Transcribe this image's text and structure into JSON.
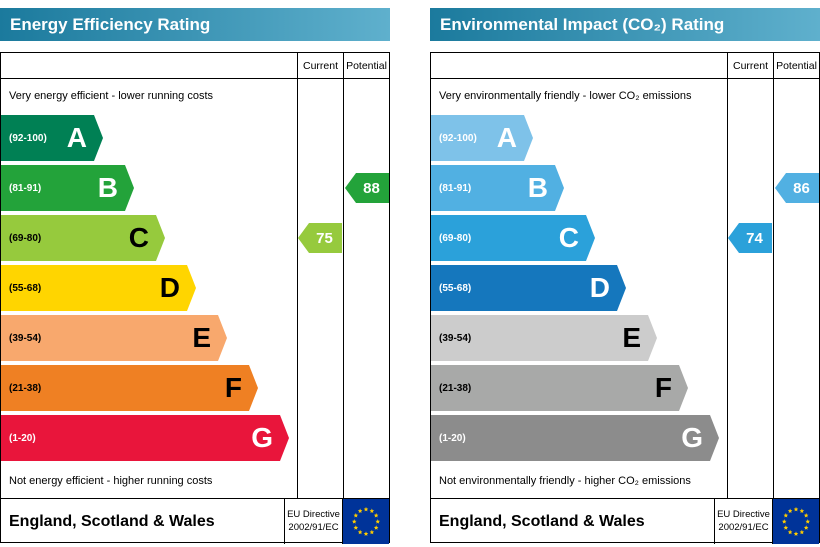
{
  "eu_flag": {
    "background": "#003399",
    "star_color": "#ffcc00"
  },
  "header_gradient": {
    "from": "#1b7a9d",
    "to": "#5fb0cd"
  },
  "charts": [
    {
      "title": "Energy Efficiency Rating",
      "columns": {
        "current": "Current",
        "potential": "Potential"
      },
      "top_note": "Very energy efficient - lower running costs",
      "bottom_note": "Not energy efficient - higher running costs",
      "bands": [
        {
          "label": "A",
          "range": "(92-100)",
          "color": "#008054",
          "text_color": "#ffffff"
        },
        {
          "label": "B",
          "range": "(81-91)",
          "color": "#23a33a",
          "text_color": "#ffffff"
        },
        {
          "label": "C",
          "range": "(69-80)",
          "color": "#96ca3d",
          "text_color": "#000000"
        },
        {
          "label": "D",
          "range": "(55-68)",
          "color": "#ffd500",
          "text_color": "#000000"
        },
        {
          "label": "E",
          "range": "(39-54)",
          "color": "#f8a86d",
          "text_color": "#000000"
        },
        {
          "label": "F",
          "range": "(21-38)",
          "color": "#ef8023",
          "text_color": "#000000"
        },
        {
          "label": "G",
          "range": "(1-20)",
          "color": "#e9153b",
          "text_color": "#ffffff"
        }
      ],
      "current": {
        "value": "75",
        "band_index": 2,
        "color": "#96ca3d"
      },
      "potential": {
        "value": "88",
        "band_index": 1,
        "color": "#23a33a"
      },
      "footer": {
        "region": "England, Scotland & Wales",
        "directive_line1": "EU Directive",
        "directive_line2": "2002/91/EC"
      }
    },
    {
      "title": "Environmental Impact (CO₂) Rating",
      "columns": {
        "current": "Current",
        "potential": "Potential"
      },
      "top_note": "Very environmentally friendly - lower CO₂ emissions",
      "bottom_note": "Not environmentally friendly - higher CO₂ emissions",
      "bands": [
        {
          "label": "A",
          "range": "(92-100)",
          "color": "#7ec2e9",
          "text_color": "#ffffff"
        },
        {
          "label": "B",
          "range": "(81-91)",
          "color": "#51b0e2",
          "text_color": "#ffffff"
        },
        {
          "label": "C",
          "range": "(69-80)",
          "color": "#2ba1da",
          "text_color": "#ffffff"
        },
        {
          "label": "D",
          "range": "(55-68)",
          "color": "#1577bd",
          "text_color": "#ffffff"
        },
        {
          "label": "E",
          "range": "(39-54)",
          "color": "#cccccc",
          "text_color": "#000000"
        },
        {
          "label": "F",
          "range": "(21-38)",
          "color": "#a8a9a8",
          "text_color": "#000000"
        },
        {
          "label": "G",
          "range": "(1-20)",
          "color": "#8c8c8c",
          "text_color": "#ffffff"
        }
      ],
      "current": {
        "value": "74",
        "band_index": 2,
        "color": "#2ba1da"
      },
      "potential": {
        "value": "86",
        "band_index": 1,
        "color": "#51b0e2"
      },
      "footer": {
        "region": "England, Scotland & Wales",
        "directive_line1": "EU Directive",
        "directive_line2": "2002/91/EC"
      }
    }
  ],
  "chart_data": [
    {
      "type": "bar",
      "title": "Energy Efficiency Rating",
      "categories": [
        "A (92-100)",
        "B (81-91)",
        "C (69-80)",
        "D (55-68)",
        "E (39-54)",
        "F (21-38)",
        "G (1-20)"
      ],
      "current": 75,
      "current_band": "C",
      "potential": 88,
      "potential_band": "B",
      "xlim": [
        1,
        100
      ]
    },
    {
      "type": "bar",
      "title": "Environmental Impact (CO₂) Rating",
      "categories": [
        "A (92-100)",
        "B (81-91)",
        "C (69-80)",
        "D (55-68)",
        "E (39-54)",
        "F (21-38)",
        "G (1-20)"
      ],
      "current": 74,
      "current_band": "C",
      "potential": 86,
      "potential_band": "B",
      "xlim": [
        1,
        100
      ]
    }
  ]
}
